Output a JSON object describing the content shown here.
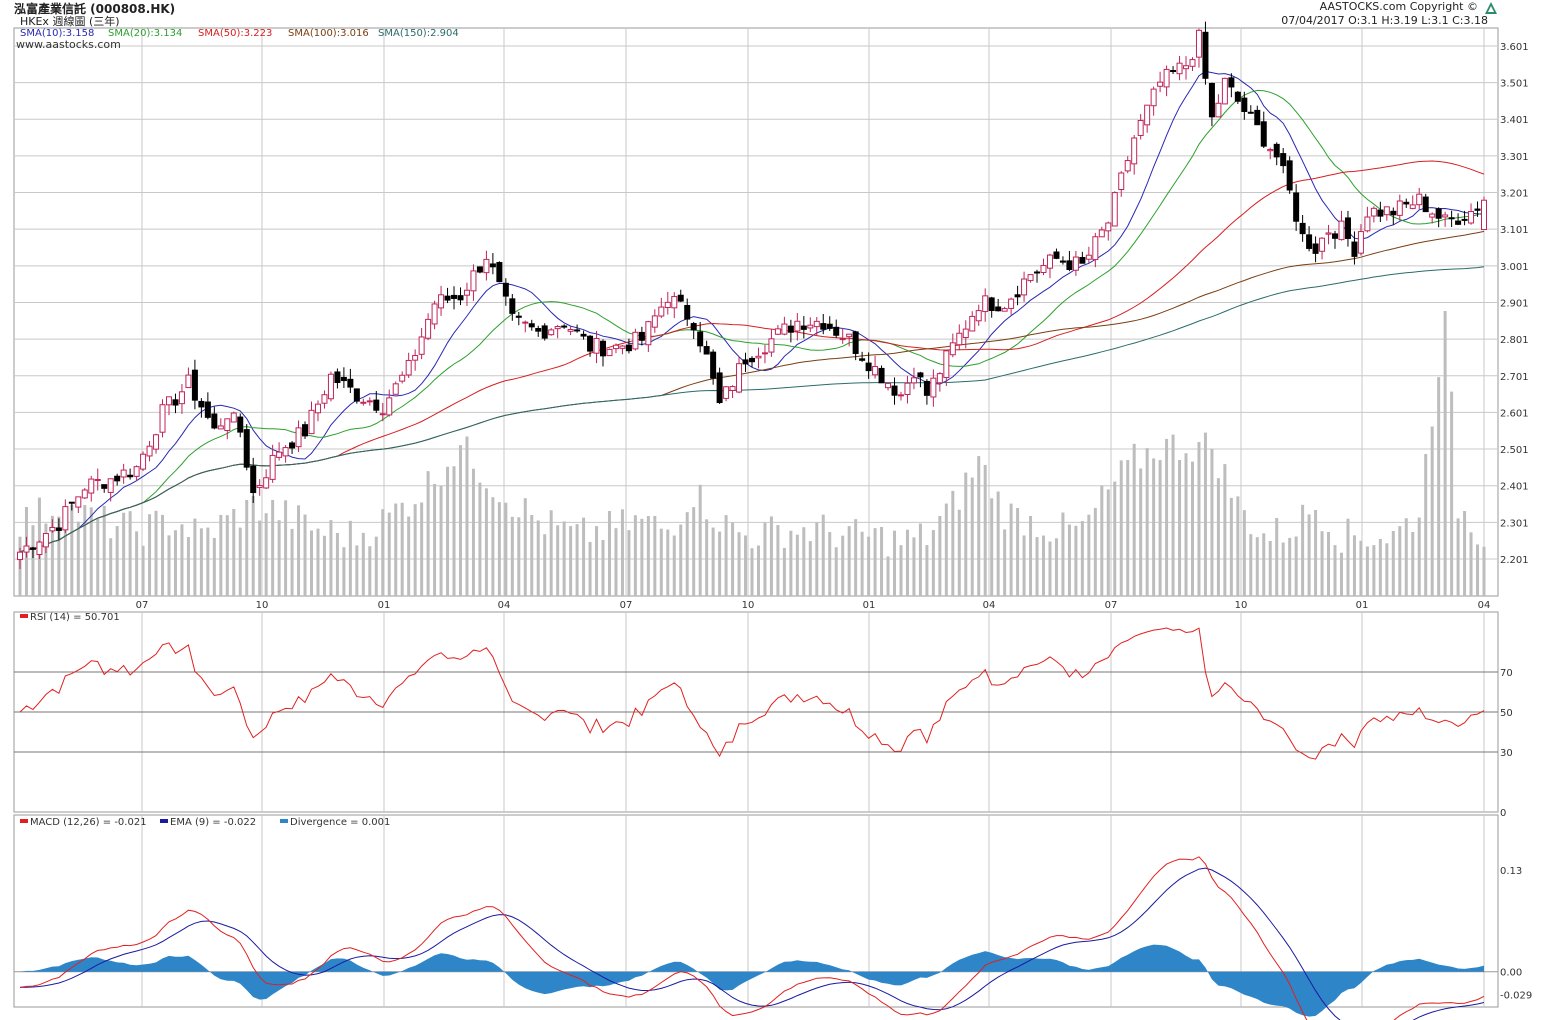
{
  "header": {
    "title": "泓富產業信託 (000808.HK)",
    "subtitle": "HKEx 週線圖 (三年)",
    "copyright": "AASTOCKS.com Copyright ©",
    "ohlc": "07/04/2017   O:3.1  H:3.19  L:3.1  C:3.18",
    "watermark": "www.aastocks.com"
  },
  "colors": {
    "up": "#c0245a",
    "down": "#000000",
    "volume": "#bdbdbd",
    "sma10": "#2828b4",
    "sma20": "#2ca02c",
    "sma50": "#d62020",
    "sma100": "#7a3e10",
    "sma150": "#2a6b6b",
    "rsi": "#e02020",
    "macd": "#e02020",
    "ema": "#1a1aa0",
    "divergence": "#2e86c8",
    "grid": "#c8c8c8"
  },
  "legends": {
    "sma10": "SMA(10):3.158",
    "sma20": "SMA(20):3.134",
    "sma50": "SMA(50):3.223",
    "sma100": "SMA(100):3.016",
    "sma150": "SMA(150):2.904",
    "rsi": "RSI (14) = 50.701",
    "macd": "MACD (12,26) = -0.021",
    "ema": "EMA (9) = -0.022",
    "divergence": "Divergence = 0.001"
  },
  "chart_data": [
    {
      "type": "candlestick",
      "title": "泓富產業信託 (000808.HK)",
      "ylim": [
        2.1,
        3.65
      ],
      "y_ticks": [
        "3.601",
        "3.501",
        "3.401",
        "3.301",
        "3.201",
        "3.101",
        "3.001",
        "2.901",
        "2.801",
        "2.701",
        "2.601",
        "2.501",
        "2.401",
        "2.301",
        "2.201"
      ],
      "x_ticks": [
        "07",
        "10",
        "01",
        "04",
        "07",
        "10",
        "01",
        "04",
        "07",
        "10",
        "01",
        "04"
      ],
      "close_anchors": [
        [
          0,
          2.22
        ],
        [
          6,
          2.3
        ],
        [
          10,
          2.4
        ],
        [
          14,
          2.42
        ],
        [
          18,
          2.45
        ],
        [
          22,
          2.6
        ],
        [
          26,
          2.68
        ],
        [
          28,
          2.62
        ],
        [
          30,
          2.55
        ],
        [
          32,
          2.6
        ],
        [
          34,
          2.55
        ],
        [
          36,
          2.38
        ],
        [
          40,
          2.5
        ],
        [
          44,
          2.55
        ],
        [
          48,
          2.7
        ],
        [
          52,
          2.65
        ],
        [
          56,
          2.62
        ],
        [
          60,
          2.72
        ],
        [
          64,
          2.9
        ],
        [
          68,
          2.92
        ],
        [
          72,
          3.03
        ],
        [
          76,
          2.85
        ],
        [
          80,
          2.82
        ],
        [
          84,
          2.85
        ],
        [
          88,
          2.78
        ],
        [
          92,
          2.78
        ],
        [
          96,
          2.8
        ],
        [
          100,
          2.92
        ],
        [
          104,
          2.85
        ],
        [
          106,
          2.75
        ],
        [
          108,
          2.62
        ],
        [
          112,
          2.75
        ],
        [
          116,
          2.8
        ],
        [
          120,
          2.85
        ],
        [
          124,
          2.85
        ],
        [
          128,
          2.8
        ],
        [
          132,
          2.72
        ],
        [
          136,
          2.65
        ],
        [
          138,
          2.72
        ],
        [
          140,
          2.65
        ],
        [
          144,
          2.78
        ],
        [
          148,
          2.9
        ],
        [
          152,
          2.9
        ],
        [
          156,
          2.98
        ],
        [
          160,
          3.02
        ],
        [
          164,
          3.0
        ],
        [
          168,
          3.12
        ],
        [
          172,
          3.35
        ],
        [
          176,
          3.5
        ],
        [
          180,
          3.55
        ],
        [
          182,
          3.62
        ],
        [
          184,
          3.4
        ],
        [
          186,
          3.5
        ],
        [
          190,
          3.4
        ],
        [
          194,
          3.3
        ],
        [
          196,
          3.2
        ],
        [
          198,
          3.08
        ],
        [
          200,
          3.05
        ],
        [
          202,
          3.1
        ],
        [
          204,
          3.1
        ],
        [
          206,
          3.05
        ],
        [
          208,
          3.15
        ],
        [
          212,
          3.15
        ],
        [
          216,
          3.18
        ],
        [
          220,
          3.12
        ],
        [
          224,
          3.15
        ],
        [
          226,
          3.18
        ]
      ],
      "volume_anchors": [
        [
          0,
          0.25
        ],
        [
          6,
          0.3
        ],
        [
          12,
          0.25
        ],
        [
          18,
          0.22
        ],
        [
          24,
          0.25
        ],
        [
          28,
          0.2
        ],
        [
          32,
          0.25
        ],
        [
          36,
          0.3
        ],
        [
          40,
          0.28
        ],
        [
          46,
          0.22
        ],
        [
          52,
          0.2
        ],
        [
          56,
          0.25
        ],
        [
          62,
          0.35
        ],
        [
          68,
          0.5
        ],
        [
          74,
          0.35
        ],
        [
          80,
          0.25
        ],
        [
          86,
          0.2
        ],
        [
          90,
          0.22
        ],
        [
          96,
          0.25
        ],
        [
          100,
          0.22
        ],
        [
          104,
          0.35
        ],
        [
          108,
          0.25
        ],
        [
          112,
          0.2
        ],
        [
          118,
          0.22
        ],
        [
          124,
          0.22
        ],
        [
          128,
          0.2
        ],
        [
          132,
          0.2
        ],
        [
          136,
          0.18
        ],
        [
          140,
          0.2
        ],
        [
          144,
          0.3
        ],
        [
          148,
          0.45
        ],
        [
          152,
          0.28
        ],
        [
          156,
          0.25
        ],
        [
          160,
          0.22
        ],
        [
          164,
          0.22
        ],
        [
          168,
          0.35
        ],
        [
          172,
          0.45
        ],
        [
          176,
          0.5
        ],
        [
          180,
          0.5
        ],
        [
          184,
          0.5
        ],
        [
          188,
          0.3
        ],
        [
          192,
          0.2
        ],
        [
          196,
          0.22
        ],
        [
          200,
          0.3
        ],
        [
          204,
          0.2
        ],
        [
          208,
          0.2
        ],
        [
          212,
          0.2
        ],
        [
          216,
          0.28
        ],
        [
          220,
          0.95
        ],
        [
          222,
          0.3
        ],
        [
          226,
          0.2
        ]
      ],
      "weeks": 227,
      "series": [
        {
          "name": "SMA(10)",
          "last": 3.158
        },
        {
          "name": "SMA(20)",
          "last": 3.134
        },
        {
          "name": "SMA(50)",
          "last": 3.223
        },
        {
          "name": "SMA(100)",
          "last": 3.016
        },
        {
          "name": "SMA(150)",
          "last": 2.904
        }
      ],
      "last_bar": {
        "date": "07/04/2017",
        "open": 3.1,
        "high": 3.19,
        "low": 3.1,
        "close": 3.18
      }
    },
    {
      "type": "line",
      "title": "RSI (14) = 50.701",
      "ylim": [
        0,
        100
      ],
      "y_ticks": [
        "70",
        "50",
        "30",
        "0"
      ],
      "series": [
        {
          "name": "RSI (14)",
          "last": 50.701
        }
      ]
    },
    {
      "type": "line",
      "title": "MACD (12,26) = -0.021",
      "y_ticks": [
        "0.13",
        "0.00",
        "-0.029"
      ],
      "ylim": [
        -0.045,
        0.2
      ],
      "series": [
        {
          "name": "MACD (12,26)",
          "last": -0.021
        },
        {
          "name": "EMA (9)",
          "last": -0.022
        },
        {
          "name": "Divergence",
          "last": 0.001
        }
      ]
    }
  ]
}
